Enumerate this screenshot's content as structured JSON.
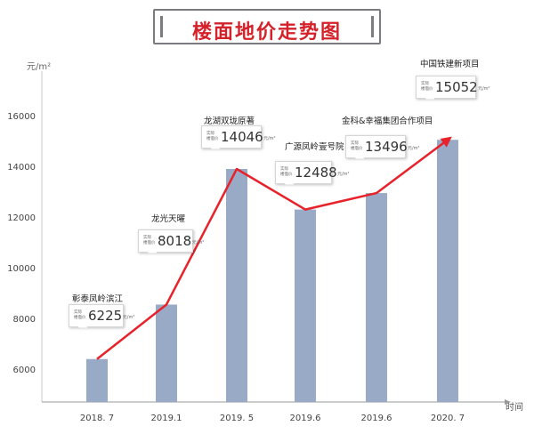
{
  "header": {
    "title": "楼面地价走势图"
  },
  "axis": {
    "y_unit": "元/m²",
    "x_name": "时间"
  },
  "callout": {
    "label_line1": "实际",
    "label_line2": "楼面价",
    "price_unit": "元/m²"
  },
  "chart_data": {
    "type": "bar",
    "categories": [
      "2018. 7",
      "2019.1",
      "2019. 5",
      "2019.6",
      "2019.6",
      "2020. 7"
    ],
    "values": [
      6500,
      8650,
      14000,
      12400,
      13050,
      15150
    ],
    "projects": [
      "彰泰凤岭滨江",
      "龙光天曜",
      "龙湖双珑原著",
      "广源凤岭壹号院",
      "金科&幸福集团合作项目",
      "中国铁建新项目"
    ],
    "prices": [
      "6225",
      "8018",
      "14046",
      "12488",
      "13496",
      "15052"
    ],
    "ylim": [
      5000,
      17500
    ],
    "yticks": [
      6000,
      8000,
      10000,
      12000,
      14000,
      16000
    ],
    "ytick_labels": [
      "6000",
      "8000",
      "10000",
      "12000",
      "14000",
      "16000"
    ],
    "bar_color": "#98aac6",
    "trend_color": "#e8222a",
    "grid": false
  }
}
